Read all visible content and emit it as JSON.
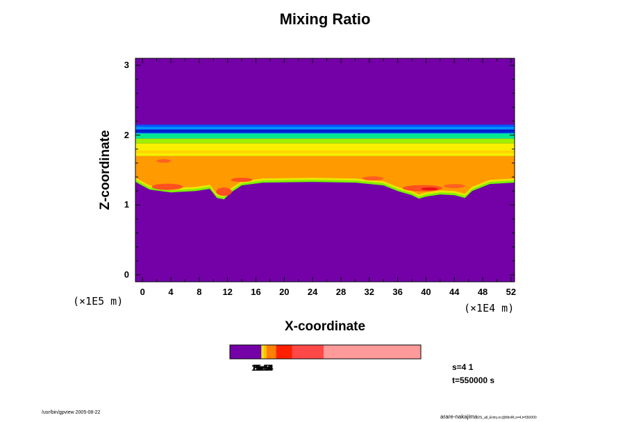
{
  "chart_data": {
    "type": "heatmap",
    "title": "Mixing Ratio",
    "xlabel": "X-coordinate",
    "ylabel": "Z-coordinate",
    "x_unit": "(×1E4 m)",
    "y_unit": "(×1E5 m)",
    "xlim": [
      -1,
      52.5
    ],
    "ylim": [
      -0.1,
      3.1
    ],
    "x_ticks": [
      0,
      4,
      8,
      12,
      16,
      20,
      24,
      28,
      32,
      36,
      40,
      44,
      48,
      52
    ],
    "y_ticks": [
      0,
      1,
      2,
      3
    ],
    "grid": false,
    "background_color": "#7400a8",
    "layers": [
      {
        "z_bottom": 2.12,
        "z_top": 2.15,
        "color": "#0055ff"
      },
      {
        "z_bottom": 2.07,
        "z_top": 2.12,
        "color": "#0090ff"
      },
      {
        "z_bottom": 2.02,
        "z_top": 2.07,
        "color": "#00c8ff"
      },
      {
        "z_bottom": 1.95,
        "z_top": 2.02,
        "color": "#00e890"
      },
      {
        "z_bottom": 1.88,
        "z_top": 1.95,
        "color": "#9ef000"
      },
      {
        "z_bottom": 1.7,
        "z_top": 1.88,
        "color": "#f8f000"
      },
      {
        "z_bottom": 1.35,
        "z_top": 1.7,
        "color": "#ff9a00"
      }
    ],
    "bands": [
      {
        "z_bottom": 2.03,
        "z_top": 2.08,
        "color": "#0000c8"
      },
      {
        "z_bottom": 1.74,
        "z_top": 1.78,
        "color": "#ffd000"
      },
      {
        "z_bottom": 1.6,
        "z_top": 1.66,
        "color": "#ffc800"
      },
      {
        "z_bottom": 1.44,
        "z_top": 1.49,
        "color": "#ffd000"
      }
    ],
    "edge_colors": [
      "#7cf000",
      "#e8e800"
    ],
    "cloud_base": [
      [
        -1,
        1.33
      ],
      [
        1,
        1.22
      ],
      [
        4,
        1.18
      ],
      [
        7.5,
        1.2
      ],
      [
        9.5,
        1.23
      ],
      [
        10.5,
        1.1
      ],
      [
        11.5,
        1.08
      ],
      [
        12.5,
        1.18
      ],
      [
        14,
        1.28
      ],
      [
        17,
        1.32
      ],
      [
        24,
        1.33
      ],
      [
        30,
        1.32
      ],
      [
        34,
        1.28
      ],
      [
        36,
        1.2
      ],
      [
        38,
        1.14
      ],
      [
        39,
        1.09
      ],
      [
        40,
        1.12
      ],
      [
        42,
        1.15
      ],
      [
        44,
        1.14
      ],
      [
        45.5,
        1.1
      ],
      [
        46.5,
        1.2
      ],
      [
        49,
        1.3
      ],
      [
        52.5,
        1.32
      ]
    ],
    "blobs": [
      {
        "cx": 3.5,
        "cz": 1.26,
        "rx": 2.2,
        "rz": 0.045,
        "color": "#ff5020"
      },
      {
        "cx": 11.5,
        "cz": 1.19,
        "rx": 1.1,
        "rz": 0.06,
        "color": "#ff5020"
      },
      {
        "cx": 14,
        "cz": 1.36,
        "rx": 1.5,
        "rz": 0.03,
        "color": "#ff5020"
      },
      {
        "cx": 3,
        "cz": 1.63,
        "rx": 1.0,
        "rz": 0.025,
        "color": "#ff6020"
      },
      {
        "cx": 32.5,
        "cz": 1.38,
        "rx": 1.5,
        "rz": 0.03,
        "color": "#ff6020"
      },
      {
        "cx": 39.5,
        "cz": 1.24,
        "rx": 2.8,
        "rz": 0.045,
        "color": "#ff5020"
      },
      {
        "cx": 44,
        "cz": 1.27,
        "rx": 1.5,
        "rz": 0.03,
        "color": "#ff6020"
      },
      {
        "cx": 40.5,
        "cz": 1.23,
        "rx": 1.2,
        "rz": 0.02,
        "color": "#e81010"
      }
    ],
    "colorbar": {
      "colors": [
        "#7400a8",
        "#e8e800",
        "#ffc000",
        "#ff8000",
        "#ff2000",
        "#ff4848",
        "#ff9a9a"
      ],
      "fractions": [
        0.165,
        0.012,
        0.015,
        0.05,
        0.085,
        0.165,
        0.508
      ],
      "labels_overlapped": [
        "1e-5",
        "2e-5",
        "5e-5",
        "1e-4",
        "2e-4",
        "5e-4"
      ]
    }
  },
  "info": {
    "slice": "s=4 1",
    "time": "t=550000 s"
  },
  "footer": {
    "left": "/usr/bin/gpview 2005-08-22",
    "right_main": "arare-nakajima",
    "right_small": "DS_all_Entry.nc@MixRt,s=4,t=550000"
  }
}
